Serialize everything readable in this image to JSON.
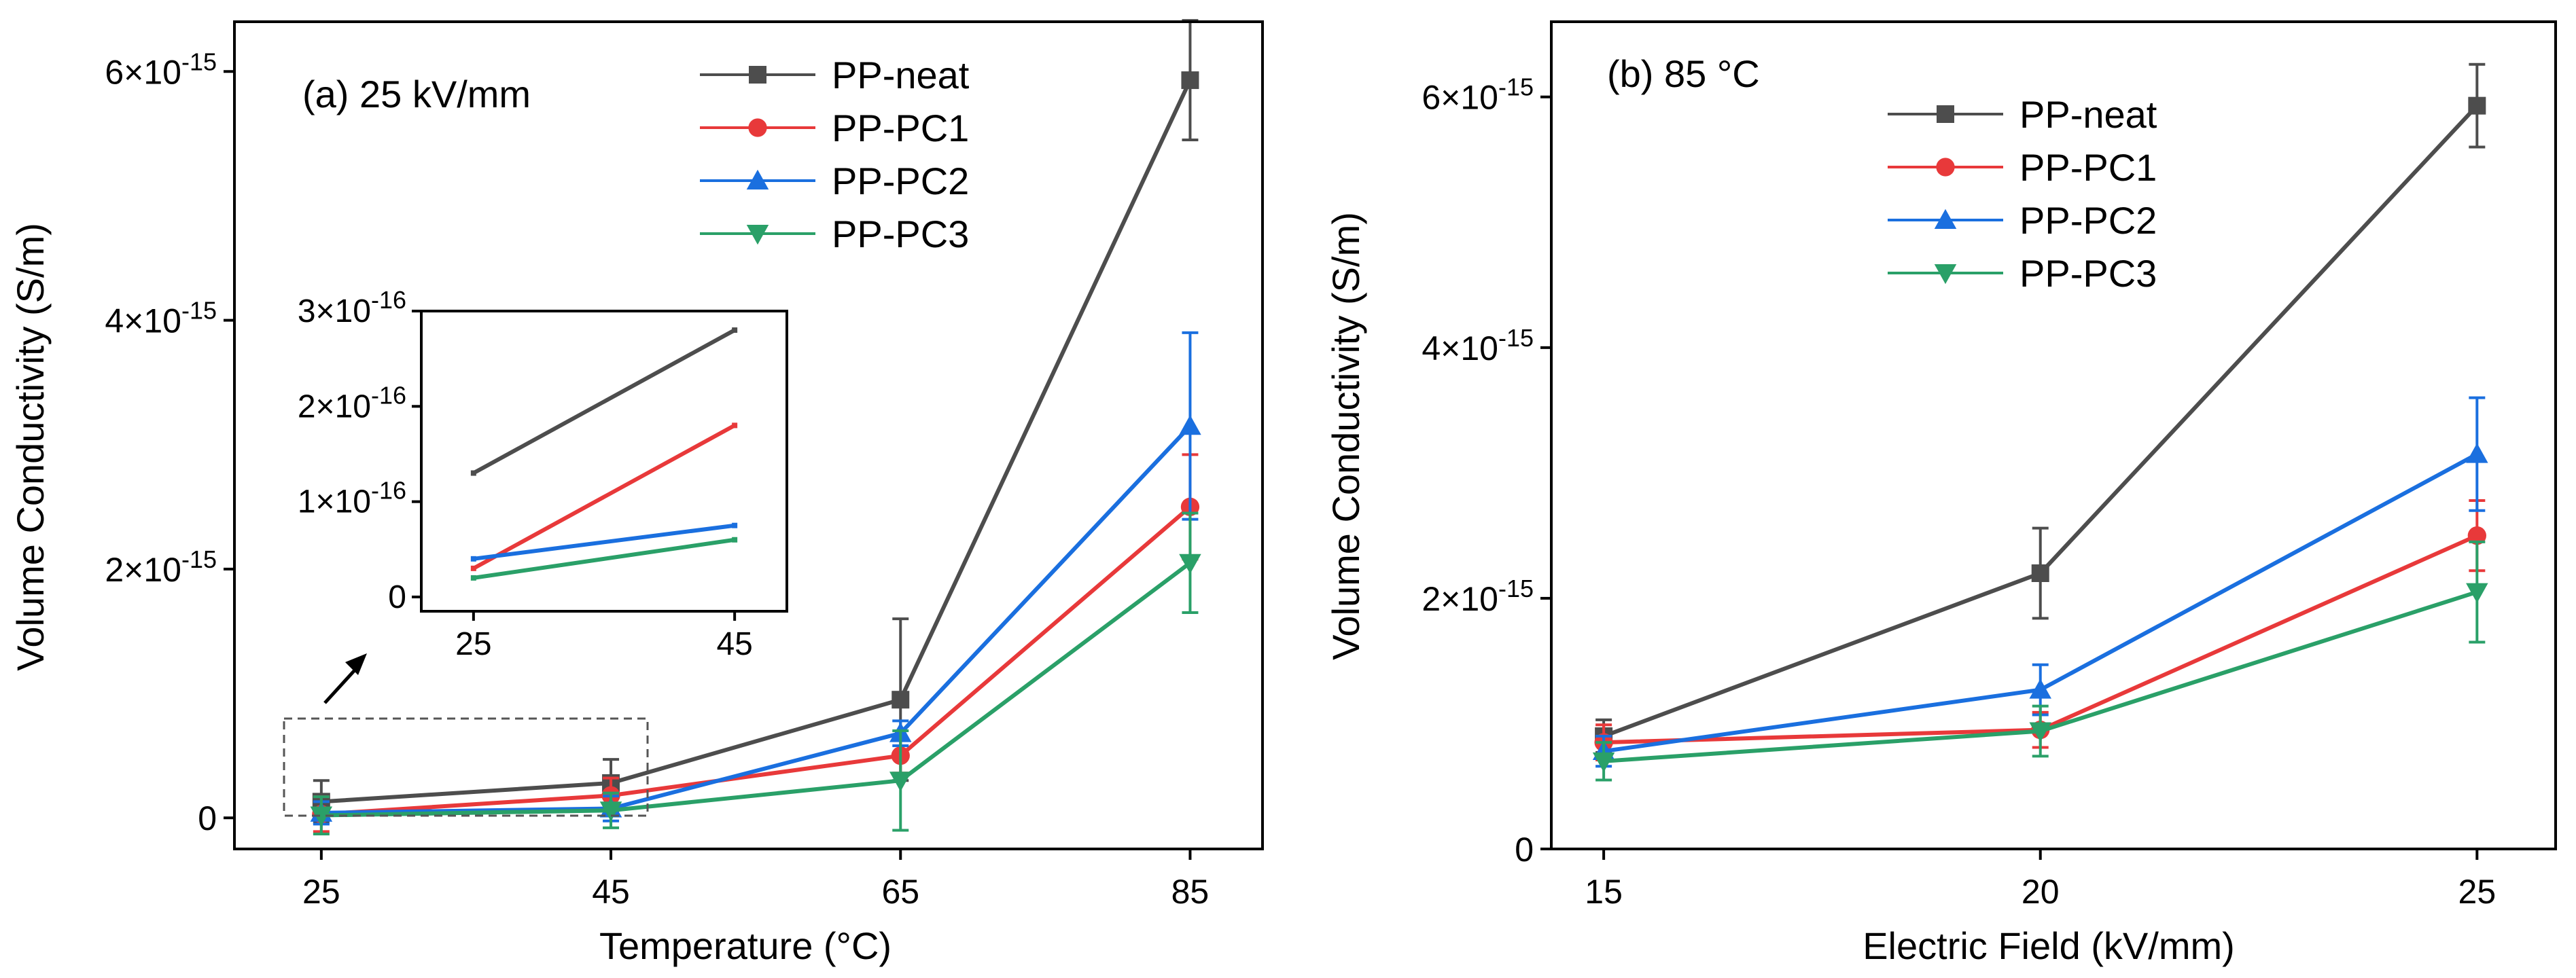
{
  "chart_data": [
    {
      "panel": "a",
      "type": "line",
      "annotation": "(a) 25 kV/mm",
      "xlabel": "Temperature (°C)",
      "ylabel": "Volume Conductivity (S/m)",
      "x": [
        25,
        45,
        65,
        85
      ],
      "x_ticks": [
        25,
        45,
        65,
        85
      ],
      "x_tick_labels": [
        "25",
        "45",
        "65",
        "85"
      ],
      "xlim": [
        19,
        90
      ],
      "ylim": [
        -2.5e-16,
        6.4e-15
      ],
      "y_ticks": [
        0,
        2e-15,
        4e-15,
        6e-15
      ],
      "y_tick_labels": [
        {
          "base": "0",
          "exp": ""
        },
        {
          "base": "2×10",
          "exp": "-15"
        },
        {
          "base": "4×10",
          "exp": "-15"
        },
        {
          "base": "6×10",
          "exp": "-15"
        }
      ],
      "grid": false,
      "legend_position": "top-center",
      "series": [
        {
          "name": "PP-neat",
          "color": "#4d4d4d",
          "marker": "square",
          "values": [
            1.3e-16,
            2.8e-16,
            9.5e-16,
            5.93e-15
          ],
          "errors": [
            1.7e-16,
            1.9e-16,
            6.5e-16,
            4.8e-16
          ]
        },
        {
          "name": "PP-PC1",
          "color": "#e8393a",
          "marker": "circle",
          "values": [
            3e-17,
            1.8e-16,
            5e-16,
            2.5e-15
          ],
          "errors": [
            1.4e-16,
            1.4e-16,
            1.4e-16,
            4.2e-16
          ]
        },
        {
          "name": "PP-PC2",
          "color": "#1a6fdf",
          "marker": "triangle-up",
          "values": [
            4e-17,
            7.5e-17,
            6.8e-16,
            3.15e-15
          ],
          "errors": [
            9e-17,
            1e-16,
            1e-16,
            7.5e-16
          ]
        },
        {
          "name": "PP-PC3",
          "color": "#2aa068",
          "marker": "triangle-down",
          "values": [
            2e-17,
            6e-17,
            3e-16,
            2.05e-15
          ],
          "errors": [
            1.5e-16,
            1.4e-16,
            4e-16,
            4e-16
          ]
        }
      ],
      "inset": {
        "x": [
          25,
          45
        ],
        "xlim": [
          21,
          49
        ],
        "x_tick_labels": [
          "25",
          "45"
        ],
        "ylim": [
          -1.5e-17,
          3e-16
        ],
        "y_ticks": [
          0,
          1e-16,
          2e-16,
          3e-16
        ],
        "y_tick_labels": [
          {
            "base": "0",
            "exp": ""
          },
          {
            "base": "1×10",
            "exp": "-16"
          },
          {
            "base": "2×10",
            "exp": "-16"
          },
          {
            "base": "3×10",
            "exp": "-16"
          }
        ],
        "series": [
          {
            "name": "PP-neat",
            "values": [
              1.3e-16,
              2.8e-16
            ]
          },
          {
            "name": "PP-PC1",
            "values": [
              3e-17,
              1.8e-16
            ]
          },
          {
            "name": "PP-PC2",
            "values": [
              4e-17,
              7.5e-17
            ]
          },
          {
            "name": "PP-PC3",
            "values": [
              2e-17,
              6e-17
            ]
          }
        ]
      }
    },
    {
      "panel": "b",
      "type": "line",
      "annotation": "(b) 85 °C",
      "xlabel": "Electric Field (kV/mm)",
      "ylabel": "Volume Conductivity (S/m)",
      "x": [
        15,
        20,
        25
      ],
      "x_ticks": [
        15,
        20,
        25
      ],
      "x_tick_labels": [
        "15",
        "20",
        "25"
      ],
      "xlim": [
        14.4,
        25.9
      ],
      "ylim": [
        0,
        6.6e-15
      ],
      "y_ticks": [
        0,
        2e-15,
        4e-15,
        6e-15
      ],
      "y_tick_labels": [
        {
          "base": "0",
          "exp": ""
        },
        {
          "base": "2×10",
          "exp": "-15"
        },
        {
          "base": "4×10",
          "exp": "-15"
        },
        {
          "base": "6×10",
          "exp": "-15"
        }
      ],
      "grid": false,
      "legend_position": "top-center",
      "series": [
        {
          "name": "PP-neat",
          "color": "#4d4d4d",
          "marker": "square",
          "values": [
            9e-16,
            2.2e-15,
            5.93e-15
          ],
          "errors": [
            1.3e-16,
            3.6e-16,
            3.3e-16
          ]
        },
        {
          "name": "PP-PC1",
          "color": "#e8393a",
          "marker": "circle",
          "values": [
            8.5e-16,
            9.5e-16,
            2.5e-15
          ],
          "errors": [
            1.4e-16,
            1.4e-16,
            2.8e-16
          ]
        },
        {
          "name": "PP-PC2",
          "color": "#1a6fdf",
          "marker": "triangle-up",
          "values": [
            7.8e-16,
            1.27e-15,
            3.15e-15
          ],
          "errors": [
            1.2e-16,
            2e-16,
            4.5e-16
          ]
        },
        {
          "name": "PP-PC3",
          "color": "#2aa068",
          "marker": "triangle-down",
          "values": [
            7e-16,
            9.4e-16,
            2.05e-15
          ],
          "errors": [
            1.5e-16,
            2e-16,
            4e-16
          ]
        }
      ]
    }
  ]
}
